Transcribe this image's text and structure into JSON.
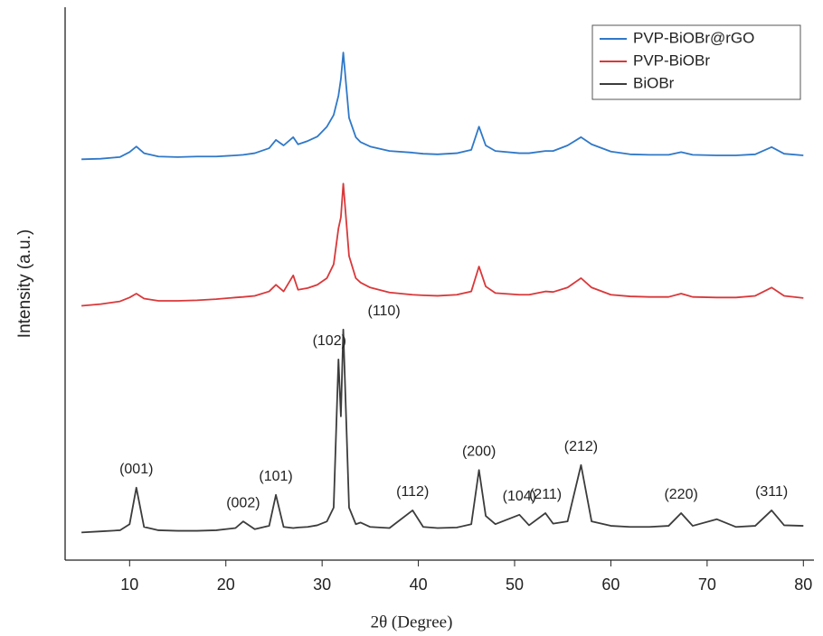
{
  "chart_data": {
    "type": "line",
    "xlabel": "2θ (Degree)",
    "ylabel": "Intensity (a.u.)",
    "xlim": [
      3.3,
      81.1
    ],
    "ylim": [
      0,
      100
    ],
    "xticks": [
      10,
      20,
      30,
      40,
      50,
      60,
      70,
      80
    ],
    "legend": "upper right",
    "x": [
      5,
      7,
      9,
      10,
      10.7,
      11.5,
      13,
      15,
      17,
      19,
      21,
      21.8,
      23,
      24.5,
      25.2,
      26,
      27,
      27.5,
      28.5,
      29.5,
      30.5,
      31.2,
      31.7,
      31.95,
      32.2,
      32.8,
      33.5,
      34,
      35,
      37,
      39.4,
      40.5,
      42,
      44,
      45.5,
      46.3,
      47,
      48,
      50.5,
      51.5,
      53.2,
      54,
      55.5,
      56.9,
      58,
      60,
      62,
      64,
      66,
      67.3,
      68.5,
      71,
      73,
      75,
      76.7,
      78,
      80
    ],
    "series": [
      {
        "name": "PVP-BiOBr@rGO",
        "color": "#2f78c8",
        "values": [
          72.5,
          72.6,
          72.9,
          73.8,
          74.8,
          73.6,
          73.0,
          72.9,
          73.0,
          73.0,
          73.2,
          73.3,
          73.6,
          74.5,
          76.0,
          75.0,
          76.5,
          75.2,
          75.8,
          76.6,
          78.4,
          80.5,
          84.0,
          87,
          91.8,
          80.0,
          76.5,
          75.6,
          74.8,
          74.0,
          73.7,
          73.5,
          73.4,
          73.6,
          74.2,
          78.4,
          75.0,
          74.0,
          73.6,
          73.6,
          74.0,
          74.0,
          75.0,
          76.5,
          75.2,
          73.9,
          73.4,
          73.3,
          73.3,
          73.8,
          73.3,
          73.2,
          73.2,
          73.4,
          74.7,
          73.5,
          73.2
        ]
      },
      {
        "name": "PVP-BiOBr",
        "color": "#d9383a",
        "values": [
          46.0,
          46.3,
          46.8,
          47.5,
          48.2,
          47.3,
          46.9,
          46.9,
          47.0,
          47.2,
          47.5,
          47.6,
          47.8,
          48.6,
          49.8,
          48.6,
          51.5,
          48.9,
          49.2,
          49.8,
          51.0,
          53.5,
          60.0,
          62,
          68.1,
          55.0,
          51.0,
          50.2,
          49.3,
          48.4,
          48.0,
          47.9,
          47.8,
          48.0,
          48.6,
          53.1,
          49.5,
          48.3,
          48.0,
          48.0,
          48.6,
          48.5,
          49.3,
          51.0,
          49.3,
          48.0,
          47.7,
          47.6,
          47.6,
          48.2,
          47.6,
          47.5,
          47.5,
          47.8,
          49.3,
          47.8,
          47.4
        ]
      },
      {
        "name": "BiOBr",
        "color": "#3c3c3c",
        "values": [
          5.0,
          5.2,
          5.4,
          6.5,
          13.1,
          6.0,
          5.4,
          5.3,
          5.3,
          5.4,
          5.8,
          7.0,
          5.6,
          6.2,
          11.8,
          6.0,
          5.8,
          5.9,
          6.0,
          6.3,
          7.0,
          9.5,
          36.3,
          26,
          41.7,
          9.5,
          6.5,
          6.8,
          6.0,
          5.8,
          9.0,
          6.0,
          5.8,
          5.9,
          6.5,
          16.3,
          8.0,
          6.5,
          8.2,
          6.3,
          8.5,
          6.6,
          7.0,
          17.2,
          7.0,
          6.2,
          6.0,
          6.0,
          6.2,
          8.5,
          6.2,
          7.4,
          6.0,
          6.2,
          9.0,
          6.3,
          6.2
        ]
      }
    ],
    "annotations": [
      {
        "text": "(001)",
        "x": 10.7
      },
      {
        "text": "(002)",
        "x": 21.8
      },
      {
        "text": "(101)",
        "x": 25.2
      },
      {
        "text": "(102)",
        "x": 31.7
      },
      {
        "text": "(110)",
        "x": 32.2
      },
      {
        "text": "(112)",
        "x": 39.4
      },
      {
        "text": "(200)",
        "x": 46.3
      },
      {
        "text": "(104)",
        "x": 50.5
      },
      {
        "text": "(211)",
        "x": 53.2
      },
      {
        "text": "(212)",
        "x": 56.9
      },
      {
        "text": "(220)",
        "x": 67.3
      },
      {
        "text": "(311)",
        "x": 76.7
      }
    ]
  }
}
